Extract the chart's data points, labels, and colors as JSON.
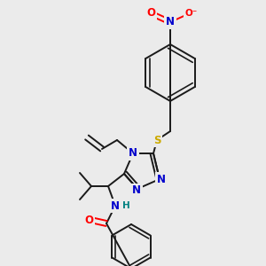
{
  "bg_color": "#ebebeb",
  "bond_color": "#1a1a1a",
  "bond_width": 1.4,
  "atom_colors": {
    "N": "#0000cc",
    "O": "#ff0000",
    "S": "#ccaa00",
    "H": "#008080",
    "C": "#1a1a1a"
  },
  "font_size": 8.5
}
